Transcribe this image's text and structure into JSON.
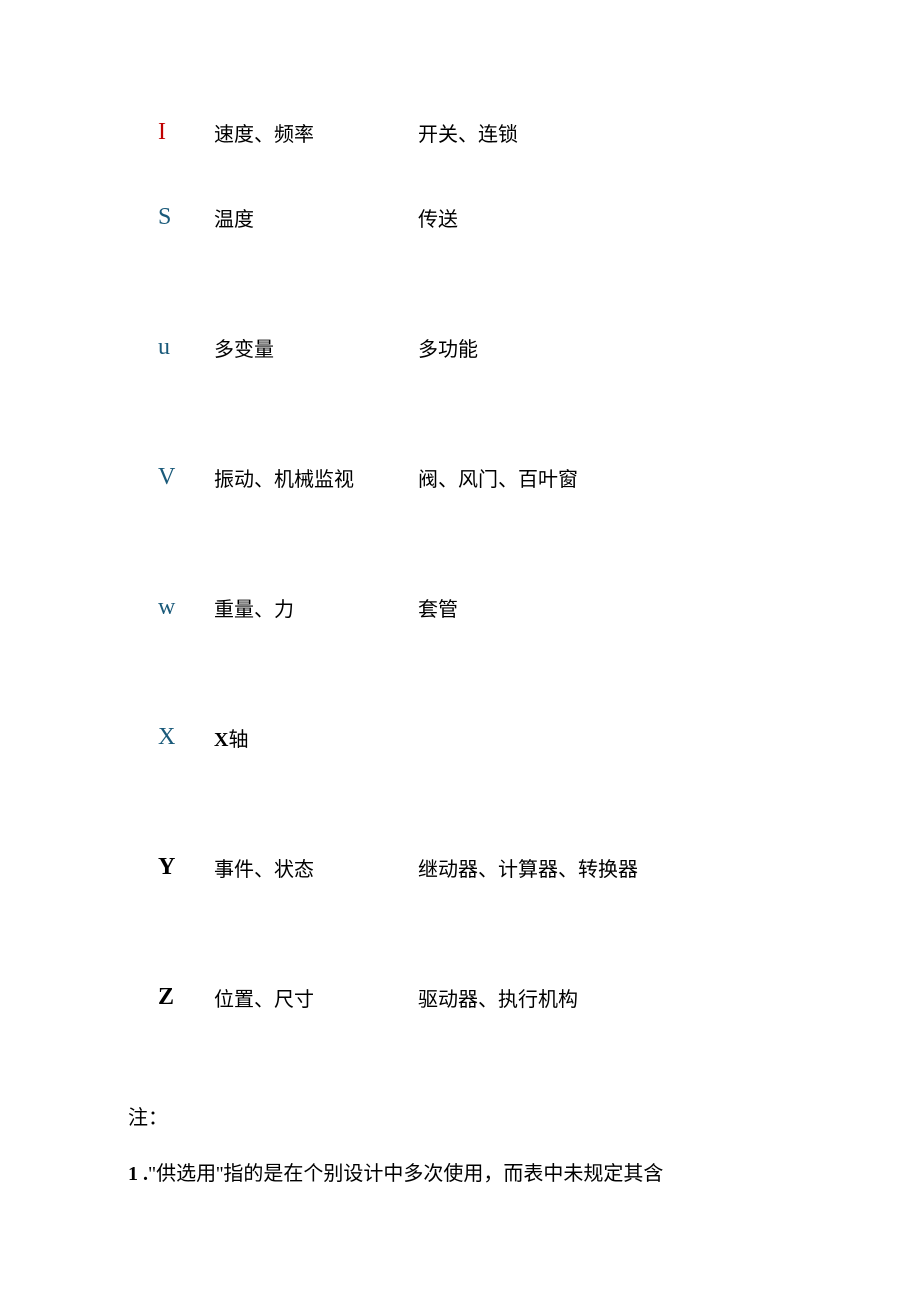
{
  "rows": [
    {
      "letter": "I",
      "letter_style": "red",
      "col1": "速度、频率",
      "col2": "开关、连锁"
    },
    {
      "letter": "S",
      "letter_style": "teal",
      "col1": "温度",
      "col2": "传送"
    },
    {
      "letter": "u",
      "letter_style": "teal",
      "col1": "多变量",
      "col2": "多功能"
    },
    {
      "letter": "V",
      "letter_style": "teal",
      "col1": "振动、机械监视",
      "col2": "阀、风门、百叶窗"
    },
    {
      "letter": "w",
      "letter_style": "teal",
      "col1": "重量、力",
      "col2": "套管"
    },
    {
      "letter": "X",
      "letter_style": "teal",
      "col1_bold_prefix": "X",
      "col1_rest": "轴",
      "col2": ""
    },
    {
      "letter": "Y",
      "letter_style": "bold",
      "col1": "事件、状态",
      "col2": "继动器、计算器、转换器"
    },
    {
      "letter": "Z",
      "letter_style": "bold",
      "col1": "位置、尺寸",
      "col2": "驱动器、执行机构"
    }
  ],
  "notes": {
    "label": "注：",
    "line1_prefix": "1 .",
    "line1_quoted": "\"供选用''",
    "line1_rest": "指的是在个别设计中多次使用，而表中未规定其含"
  },
  "styling": {
    "page_bg": "#ffffff",
    "text_color": "#000000",
    "teal_color": "#1a5a7a",
    "red_color": "#c00000",
    "body_fontsize": 20,
    "letter_fontsize": 24
  }
}
